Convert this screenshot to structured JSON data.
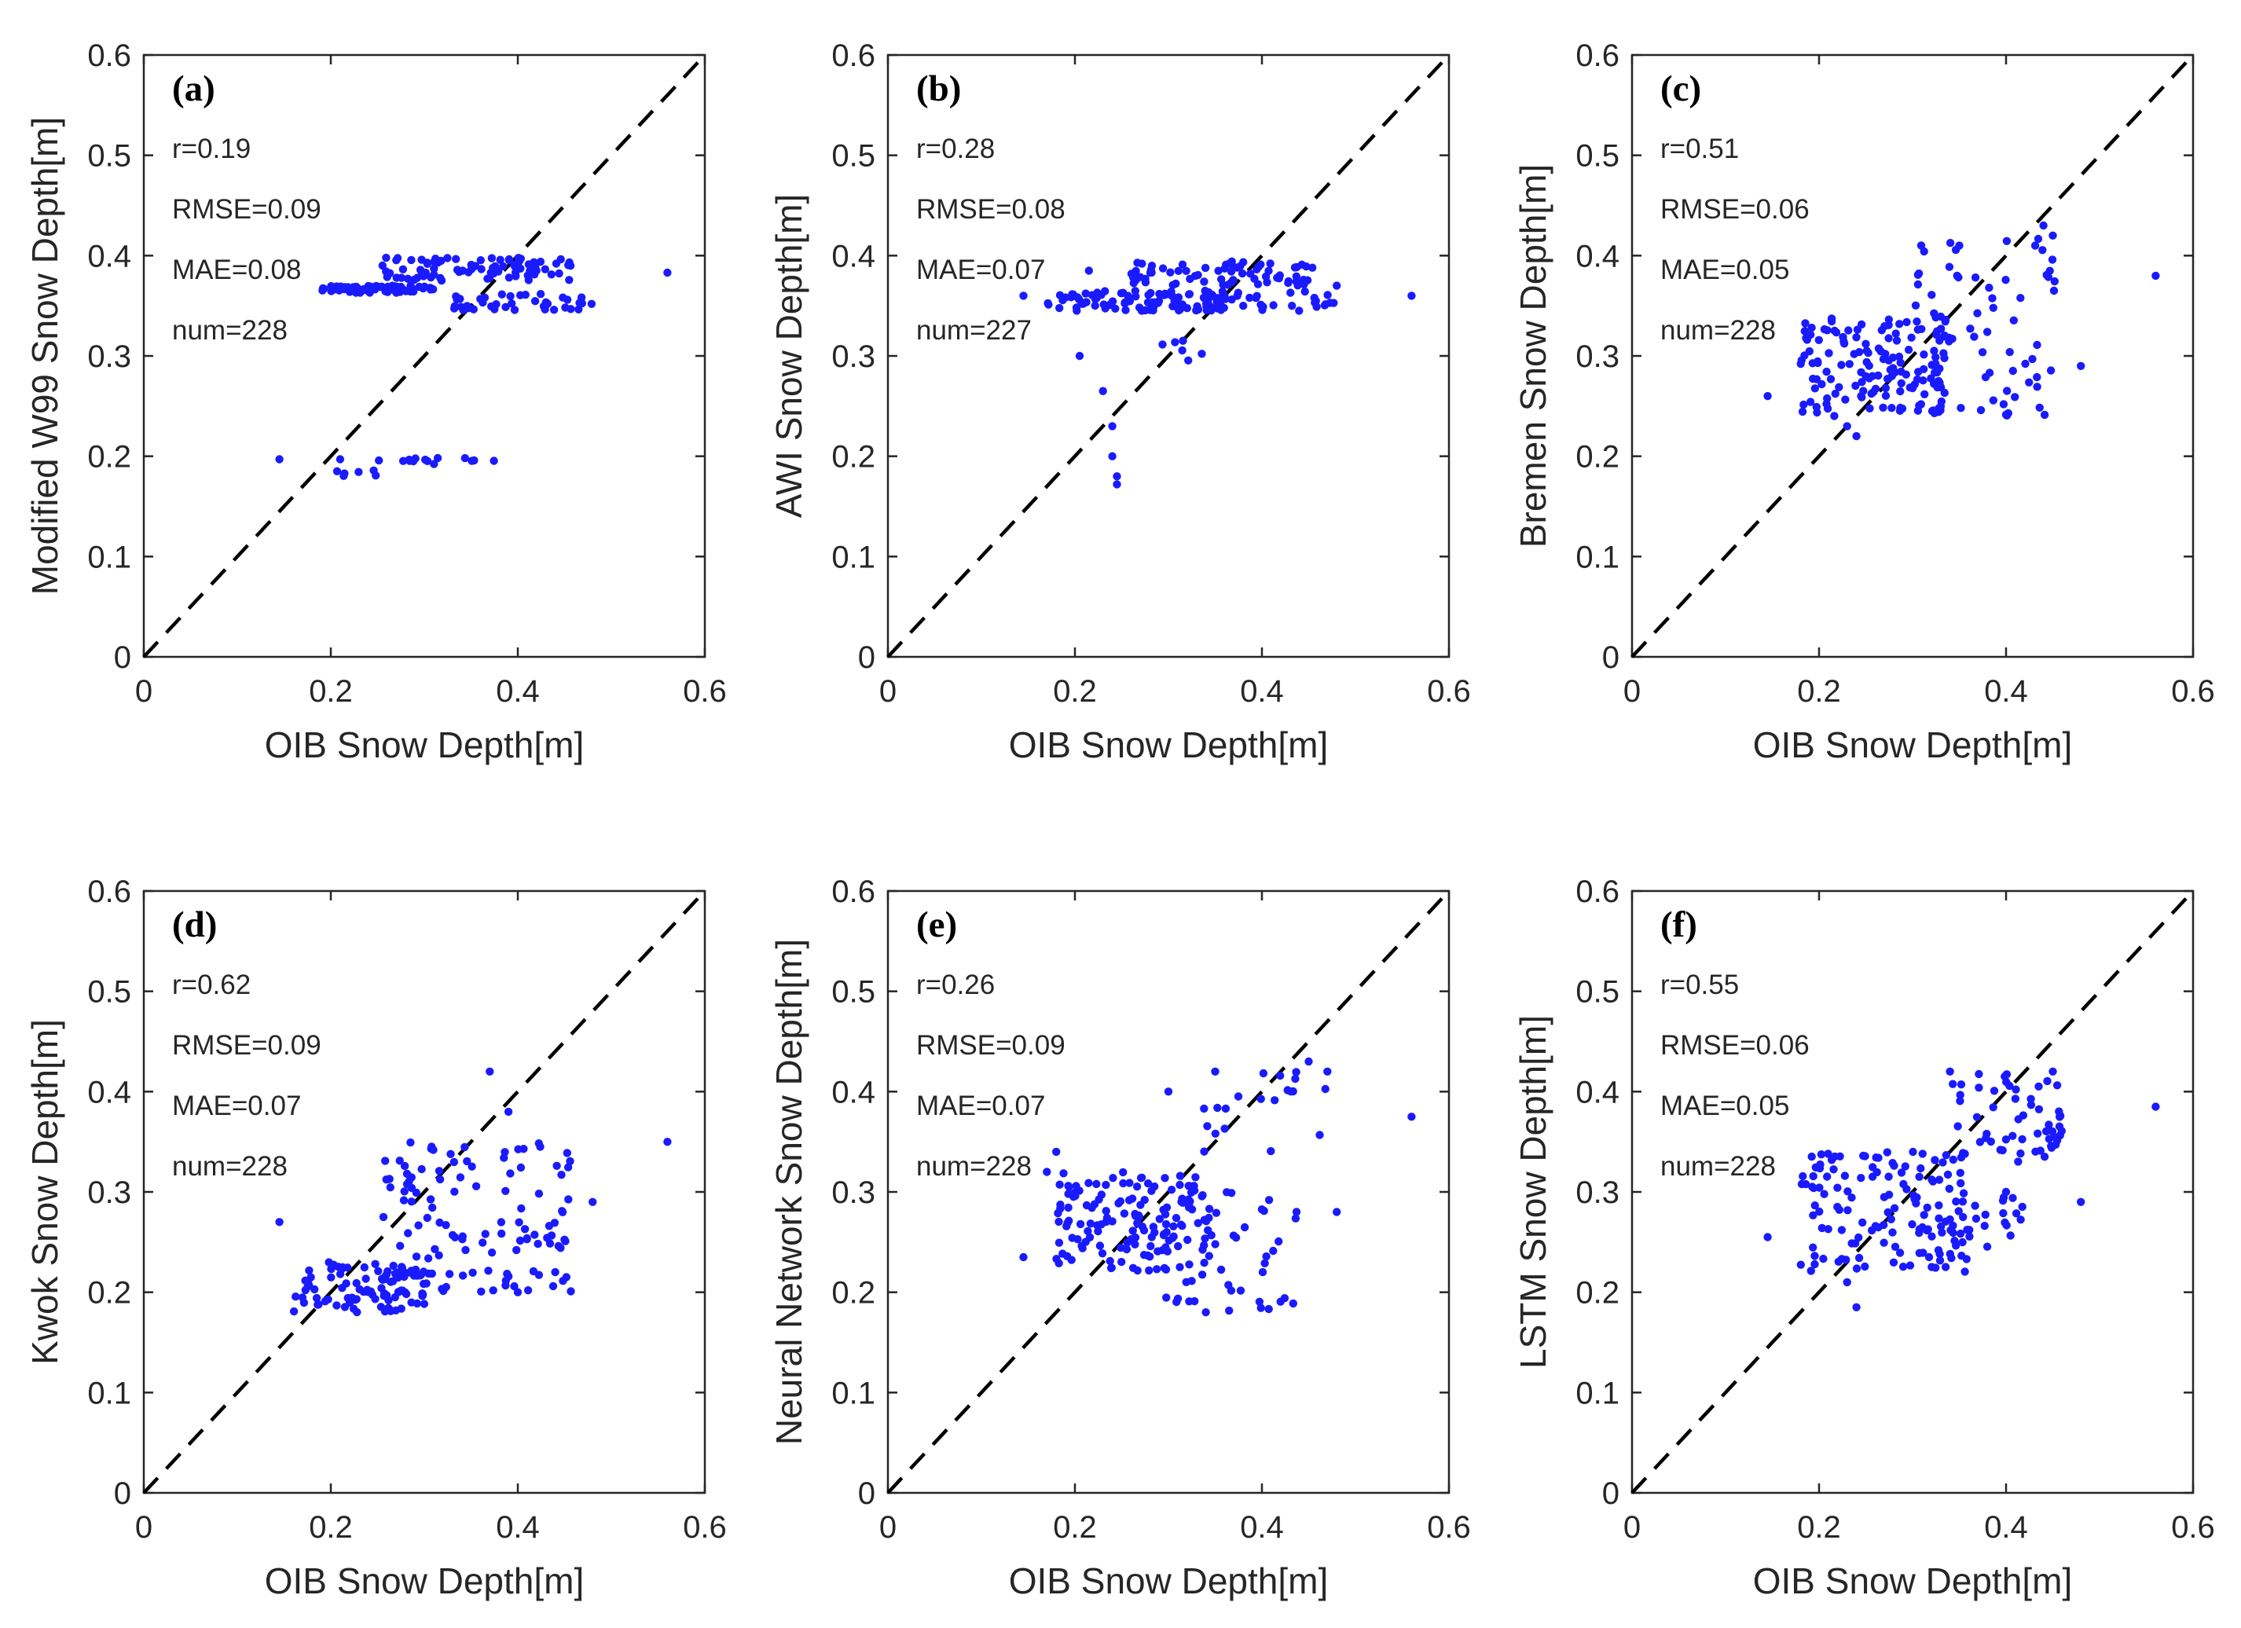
{
  "chart_data": [
    {
      "type": "scatter",
      "panel": "(a)",
      "xlabel": "OIB Snow Depth[m]",
      "ylabel": "Modified W99 Snow Depth[m]",
      "xlim": [
        0,
        0.6
      ],
      "ylim": [
        0,
        0.6
      ],
      "xticks": [
        0,
        0.2,
        0.4,
        0.6
      ],
      "yticks": [
        0,
        0.1,
        0.2,
        0.3,
        0.4,
        0.5,
        0.6
      ],
      "stats": [
        "r=0.19",
        "RMSE=0.09",
        "MAE=0.08",
        "num=228"
      ],
      "reference_line": "1:1 dashed",
      "point_color": "#1a1aff",
      "clusters": [
        {
          "x": [
            0.19,
            0.31
          ],
          "y": [
            0.363,
            0.37
          ],
          "n": 80
        },
        {
          "x": [
            0.25,
            0.46
          ],
          "y": [
            0.375,
            0.398
          ],
          "n": 85
        },
        {
          "x": [
            0.33,
            0.48
          ],
          "y": [
            0.345,
            0.362
          ],
          "n": 40
        },
        {
          "x": [
            0.23,
            0.38
          ],
          "y": [
            0.192,
            0.199
          ],
          "n": 14
        },
        {
          "x": [
            0.2,
            0.25
          ],
          "y": [
            0.18,
            0.186
          ],
          "n": 6
        }
      ],
      "points": [
        [
          0.145,
          0.197
        ],
        [
          0.21,
          0.197
        ],
        [
          0.56,
          0.383
        ]
      ]
    },
    {
      "type": "scatter",
      "panel": "(b)",
      "xlabel": "OIB Snow Depth[m]",
      "ylabel": "AWI Snow Depth[m]",
      "xlim": [
        0,
        0.6
      ],
      "ylim": [
        0,
        0.6
      ],
      "xticks": [
        0,
        0.2,
        0.4,
        0.6
      ],
      "yticks": [
        0,
        0.1,
        0.2,
        0.3,
        0.4,
        0.5,
        0.6
      ],
      "stats": [
        "r=0.28",
        "RMSE=0.08",
        "MAE=0.07",
        "num=227"
      ],
      "reference_line": "1:1 dashed",
      "point_color": "#1a1aff",
      "clusters": [
        {
          "x": [
            0.17,
            0.36
          ],
          "y": [
            0.345,
            0.365
          ],
          "n": 95
        },
        {
          "x": [
            0.26,
            0.46
          ],
          "y": [
            0.37,
            0.395
          ],
          "n": 70
        },
        {
          "x": [
            0.33,
            0.48
          ],
          "y": [
            0.345,
            0.365
          ],
          "n": 35
        },
        {
          "x": [
            0.28,
            0.34
          ],
          "y": [
            0.295,
            0.32
          ],
          "n": 6
        }
      ],
      "points": [
        [
          0.145,
          0.36
        ],
        [
          0.205,
          0.3
        ],
        [
          0.215,
          0.385
        ],
        [
          0.23,
          0.265
        ],
        [
          0.24,
          0.23
        ],
        [
          0.24,
          0.2
        ],
        [
          0.245,
          0.18
        ],
        [
          0.245,
          0.172
        ],
        [
          0.56,
          0.36
        ],
        [
          0.48,
          0.37
        ],
        [
          0.36,
          0.36
        ],
        [
          0.38,
          0.35
        ]
      ]
    },
    {
      "type": "scatter",
      "panel": "(c)",
      "xlabel": "OIB Snow Depth[m]",
      "ylabel": "Bremen Snow Depth[m]",
      "xlim": [
        0,
        0.6
      ],
      "ylim": [
        0,
        0.6
      ],
      "xticks": [
        0,
        0.2,
        0.4,
        0.6
      ],
      "yticks": [
        0,
        0.1,
        0.2,
        0.3,
        0.4,
        0.5,
        0.6
      ],
      "stats": [
        "r=0.51",
        "RMSE=0.06",
        "MAE=0.05",
        "num=228"
      ],
      "reference_line": "1:1 dashed",
      "point_color": "#1a1aff",
      "clusters": [
        {
          "x": [
            0.18,
            0.34
          ],
          "y": [
            0.24,
            0.34
          ],
          "n": 140
        },
        {
          "x": [
            0.3,
            0.46
          ],
          "y": [
            0.24,
            0.42
          ],
          "n": 75
        }
      ],
      "points": [
        [
          0.145,
          0.26
        ],
        [
          0.56,
          0.38
        ],
        [
          0.48,
          0.29
        ],
        [
          0.45,
          0.42
        ],
        [
          0.44,
          0.43
        ],
        [
          0.24,
          0.22
        ],
        [
          0.23,
          0.23
        ],
        [
          0.35,
          0.41
        ]
      ]
    },
    {
      "type": "scatter",
      "panel": "(d)",
      "xlabel": "OIB Snow Depth[m]",
      "ylabel": "Kwok Snow Depth[m]",
      "xlim": [
        0,
        0.6
      ],
      "ylim": [
        0,
        0.6
      ],
      "xticks": [
        0,
        0.2,
        0.4,
        0.6
      ],
      "yticks": [
        0,
        0.1,
        0.2,
        0.3,
        0.4,
        0.5,
        0.6
      ],
      "stats": [
        "r=0.62",
        "RMSE=0.09",
        "MAE=0.07",
        "num=228"
      ],
      "reference_line": "1:1 dashed",
      "point_color": "#1a1aff",
      "clusters": [
        {
          "x": [
            0.16,
            0.3
          ],
          "y": [
            0.18,
            0.23
          ],
          "n": 95
        },
        {
          "x": [
            0.25,
            0.46
          ],
          "y": [
            0.2,
            0.35
          ],
          "n": 120
        }
      ],
      "points": [
        [
          0.145,
          0.27
        ],
        [
          0.56,
          0.35
        ],
        [
          0.48,
          0.29
        ],
        [
          0.37,
          0.42
        ],
        [
          0.39,
          0.38
        ],
        [
          0.44,
          0.22
        ],
        [
          0.4,
          0.2
        ]
      ]
    },
    {
      "type": "scatter",
      "panel": "(e)",
      "xlabel": "OIB Snow Depth[m]",
      "ylabel": "Neural Network Snow Depth[m]",
      "xlim": [
        0,
        0.6
      ],
      "ylim": [
        0,
        0.6
      ],
      "xticks": [
        0,
        0.2,
        0.4,
        0.6
      ],
      "yticks": [
        0,
        0.1,
        0.2,
        0.3,
        0.4,
        0.5,
        0.6
      ],
      "stats": [
        "r=0.26",
        "RMSE=0.09",
        "MAE=0.07",
        "num=228"
      ],
      "reference_line": "1:1 dashed",
      "point_color": "#1a1aff",
      "clusters": [
        {
          "x": [
            0.18,
            0.34
          ],
          "y": [
            0.22,
            0.32
          ],
          "n": 130
        },
        {
          "x": [
            0.28,
            0.44
          ],
          "y": [
            0.18,
            0.3
          ],
          "n": 60
        },
        {
          "x": [
            0.33,
            0.47
          ],
          "y": [
            0.34,
            0.42
          ],
          "n": 20
        }
      ],
      "points": [
        [
          0.145,
          0.235
        ],
        [
          0.17,
          0.32
        ],
        [
          0.18,
          0.34
        ],
        [
          0.56,
          0.375
        ],
        [
          0.48,
          0.28
        ],
        [
          0.34,
          0.18
        ],
        [
          0.3,
          0.4
        ],
        [
          0.47,
          0.42
        ],
        [
          0.45,
          0.43
        ],
        [
          0.35,
          0.42
        ]
      ]
    },
    {
      "type": "scatter",
      "panel": "(f)",
      "xlabel": "OIB Snow Depth[m]",
      "ylabel": "LSTM Snow Depth[m]",
      "xlim": [
        0,
        0.6
      ],
      "ylim": [
        0,
        0.6
      ],
      "xticks": [
        0,
        0.2,
        0.4,
        0.6
      ],
      "yticks": [
        0,
        0.1,
        0.2,
        0.3,
        0.4,
        0.5,
        0.6
      ],
      "stats": [
        "r=0.55",
        "RMSE=0.06",
        "MAE=0.05",
        "num=228"
      ],
      "reference_line": "1:1 dashed",
      "point_color": "#1a1aff",
      "clusters": [
        {
          "x": [
            0.18,
            0.36
          ],
          "y": [
            0.22,
            0.34
          ],
          "n": 130
        },
        {
          "x": [
            0.34,
            0.46
          ],
          "y": [
            0.33,
            0.42
          ],
          "n": 55
        },
        {
          "x": [
            0.3,
            0.42
          ],
          "y": [
            0.24,
            0.3
          ],
          "n": 30
        }
      ],
      "points": [
        [
          0.145,
          0.255
        ],
        [
          0.56,
          0.385
        ],
        [
          0.48,
          0.29
        ],
        [
          0.24,
          0.185
        ],
        [
          0.23,
          0.21
        ],
        [
          0.34,
          0.42
        ],
        [
          0.45,
          0.42
        ],
        [
          0.4,
          0.3
        ]
      ]
    }
  ]
}
